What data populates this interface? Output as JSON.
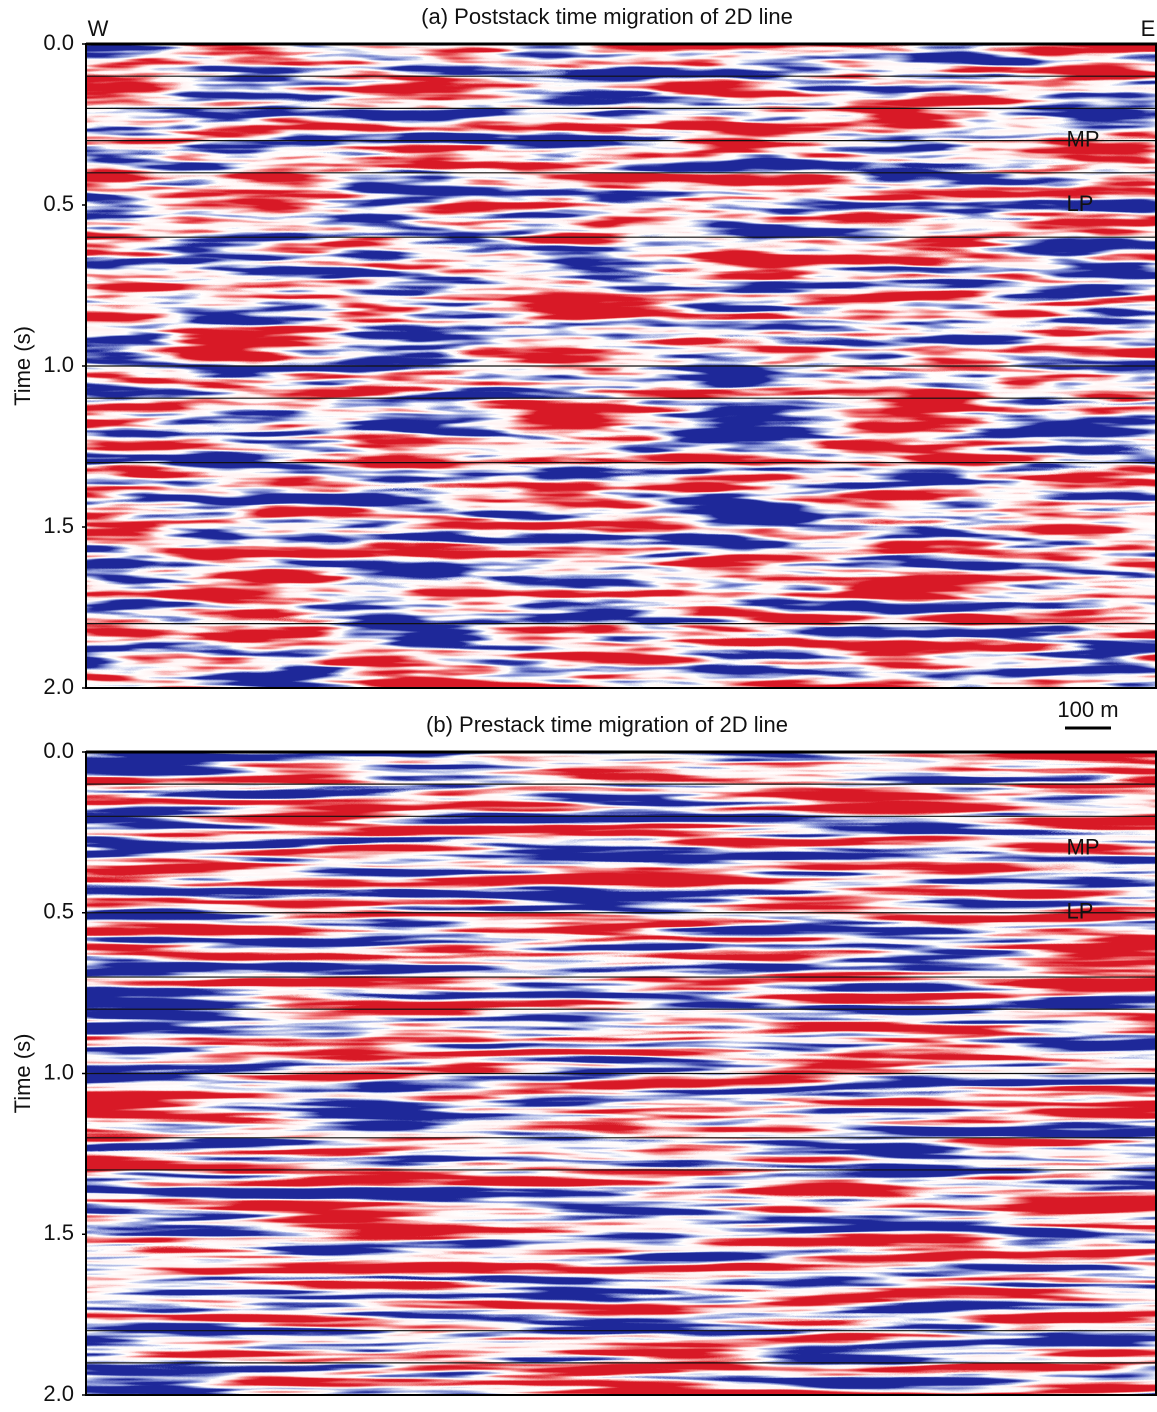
{
  "chart_data": [
    {
      "type": "seismic",
      "title": "(a) Poststack time migration of 2D line",
      "ylabel": "Time (s)",
      "west_label": "W",
      "east_label": "E",
      "annotations": [
        "MP",
        "LP"
      ],
      "scale_bar": "100 m",
      "ylim": [
        0,
        2
      ],
      "yticks": [
        {
          "value": 0,
          "label": "0.0"
        },
        0.5,
        {
          "value": 1,
          "label": "1.0"
        },
        1.5,
        {
          "value": 2,
          "label": "2.0"
        }
      ],
      "horizons": [
        0.1,
        0.2,
        0.3,
        0.4,
        0.6,
        1.0,
        1.1,
        1.3,
        1.8
      ]
    },
    {
      "type": "seismic",
      "title": "(b) Prestack time migration of 2D line",
      "ylabel": "Time (s)",
      "annotations": [
        "MP",
        "LP"
      ],
      "ylim": [
        0,
        2
      ],
      "yticks": [
        {
          "value": 0,
          "label": "0.0"
        },
        0.5,
        {
          "value": 1,
          "label": "1.0"
        },
        1.5,
        {
          "value": 2,
          "label": "2.0"
        }
      ],
      "horizons": [
        0.1,
        0.2,
        0.5,
        0.7,
        0.8,
        1.0,
        1.2,
        1.3,
        1.8,
        1.9
      ]
    }
  ]
}
